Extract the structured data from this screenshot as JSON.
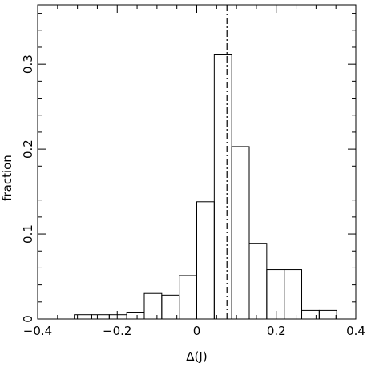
{
  "chart_data": {
    "type": "bar",
    "xlabel": "Δ(J)",
    "ylabel": "fraction",
    "title": "",
    "xlim": [
      -0.4,
      0.4
    ],
    "ylim": [
      0,
      0.37
    ],
    "x_ticks": [
      -0.4,
      -0.2,
      0,
      0.2,
      0.4
    ],
    "x_tick_labels": [
      "−0.4",
      "−0.2",
      "0",
      "0.2",
      "0.4"
    ],
    "y_ticks": [
      0,
      0.1,
      0.2,
      0.3
    ],
    "y_tick_labels": [
      "0",
      "0.1",
      "0.2",
      "0.3"
    ],
    "bin_width": 0.044,
    "bins": [
      {
        "x0": -0.308,
        "value": 0.005
      },
      {
        "x0": -0.264,
        "value": 0.005
      },
      {
        "x0": -0.22,
        "value": 0.005
      },
      {
        "x0": -0.176,
        "value": 0.008
      },
      {
        "x0": -0.132,
        "value": 0.03
      },
      {
        "x0": -0.088,
        "value": 0.028
      },
      {
        "x0": -0.044,
        "value": 0.051
      },
      {
        "x0": 0.0,
        "value": 0.138
      },
      {
        "x0": 0.044,
        "value": 0.311
      },
      {
        "x0": 0.088,
        "value": 0.203
      },
      {
        "x0": 0.132,
        "value": 0.089
      },
      {
        "x0": 0.176,
        "value": 0.058
      },
      {
        "x0": 0.22,
        "value": 0.058
      },
      {
        "x0": 0.264,
        "value": 0.01
      },
      {
        "x0": 0.308,
        "value": 0.01
      }
    ],
    "reference_line": {
      "x": 0.076,
      "style": "dash-dot"
    },
    "grid": false,
    "legend": "none"
  }
}
